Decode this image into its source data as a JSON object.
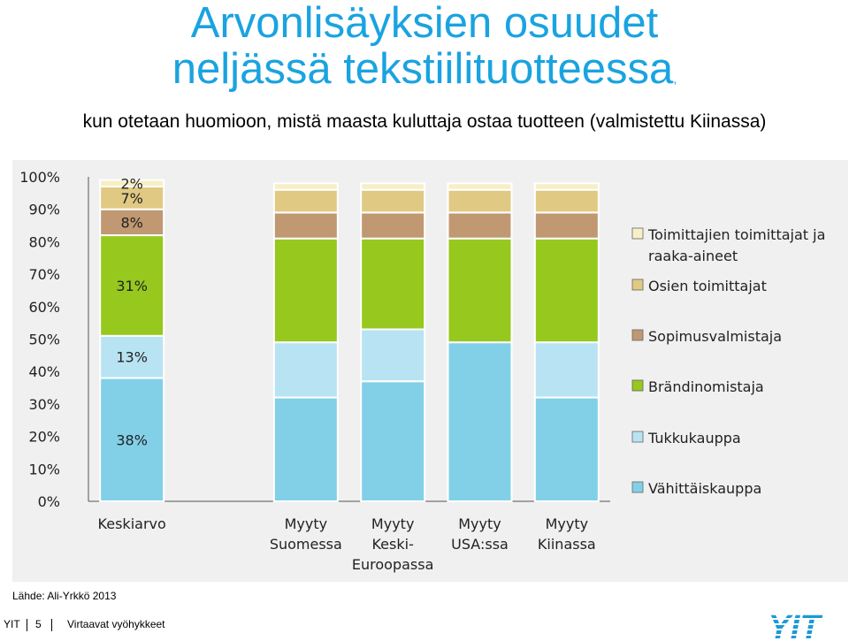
{
  "title_line1": "Arvonlisäyksien osuudet",
  "title_line2": "neljässä tekstiilituotteessa",
  "title_comma": ",",
  "subtitle": "kun otetaan huomioon, mistä maasta kuluttaja ostaa tuotteen (valmistettu Kiinassa)",
  "source": "Lähde: Ali-Yrkkö 2013",
  "footer": {
    "company": "YIT",
    "page": "5",
    "topic": "Virtaavat vyöhykkeet"
  },
  "logo_text": "YIT",
  "colors": {
    "title": "#1aa3e0",
    "Vähittäiskauppa": "#82d0e8",
    "Tukkukauppa": "#b8e3f2",
    "Brändinomistaja": "#96c81e",
    "Sopimusvalmistaja": "#c09872",
    "Osien toimittajat": "#e0c982",
    "Toimittajien toimittajat ja raaka-aineet": "#f7efc5",
    "panel": "#f0f0f0"
  },
  "chart_data": {
    "type": "bar",
    "stacked": true,
    "categories": [
      "Keskiarvo",
      "Myyty Suomessa",
      "Myyty Keski-Euroopassa",
      "Myyty USA:ssa",
      "Myyty Kiinassa"
    ],
    "category_label_lines": [
      [
        "Keskiarvo"
      ],
      [
        "Myyty",
        "Suomessa"
      ],
      [
        "Myyty",
        "Keski-",
        "Euroopassa"
      ],
      [
        "Myyty",
        "USA:ssa"
      ],
      [
        "Myyty",
        "Kiinassa"
      ]
    ],
    "series": [
      {
        "name": "Vähittäiskauppa",
        "values": [
          38,
          32,
          37,
          49,
          32
        ]
      },
      {
        "name": "Tukkukauppa",
        "values": [
          13,
          17,
          16,
          0,
          17
        ]
      },
      {
        "name": "Brändinomistaja",
        "values": [
          31,
          32,
          28,
          32,
          32
        ]
      },
      {
        "name": "Sopimusvalmistaja",
        "values": [
          8,
          8,
          8,
          8,
          8
        ]
      },
      {
        "name": "Osien toimittajat",
        "values": [
          7,
          7,
          7,
          7,
          7
        ]
      },
      {
        "name": "Toimittajien toimittajat ja raaka-aineet",
        "values": [
          2,
          2,
          2,
          2,
          2
        ]
      }
    ],
    "data_labels": [
      {
        "category": "Keskiarvo",
        "series": "Vähittäiskauppa",
        "text": "38%"
      },
      {
        "category": "Keskiarvo",
        "series": "Tukkukauppa",
        "text": "13%"
      },
      {
        "category": "Keskiarvo",
        "series": "Brändinomistaja",
        "text": "31%"
      },
      {
        "category": "Keskiarvo",
        "series": "Sopimusvalmistaja",
        "text": "8%"
      },
      {
        "category": "Keskiarvo",
        "series": "Osien toimittajat",
        "text": "7%"
      },
      {
        "category": "Keskiarvo",
        "series": "Toimittajien toimittajat ja raaka-aineet",
        "text": "2%"
      }
    ],
    "legend_order": [
      "Toimittajien toimittajat ja raaka-aineet",
      "Osien toimittajat",
      "Sopimusvalmistaja",
      "Brändinomistaja",
      "Tukkukauppa",
      "Vähittäiskauppa"
    ],
    "legend_label_lines": {
      "Toimittajien toimittajat ja raaka-aineet": [
        "Toimittajien toimittajat ja",
        "raaka-aineet"
      ],
      "Osien toimittajat": [
        "Osien toimittajat"
      ],
      "Sopimusvalmistaja": [
        "Sopimusvalmistaja"
      ],
      "Brändinomistaja": [
        "Brändinomistaja"
      ],
      "Tukkukauppa": [
        "Tukkukauppa"
      ],
      "Vähittäiskauppa": [
        "Vähittäiskauppa"
      ]
    },
    "y_ticks": [
      "0%",
      "10%",
      "20%",
      "30%",
      "40%",
      "50%",
      "60%",
      "70%",
      "80%",
      "90%",
      "100%"
    ],
    "ylim": [
      0,
      100
    ],
    "legend_position": "right",
    "grid": false,
    "title": "",
    "xlabel": "",
    "ylabel": ""
  }
}
